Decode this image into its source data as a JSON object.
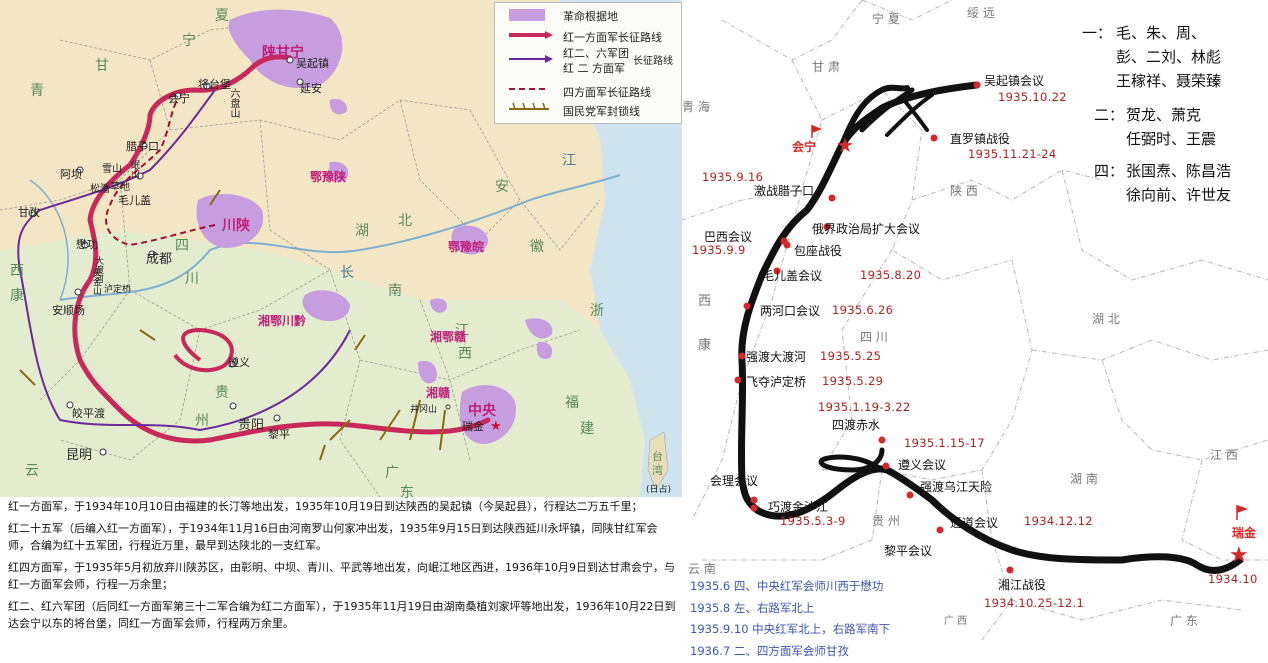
{
  "left_map": {
    "legend": {
      "base_area": "革命根据地",
      "red1_route": "红一方面军长征路线",
      "red26_line1": "红二、六军团",
      "red26_line2": "红 二 方面军",
      "red26_suffix": "长征路线",
      "red4_route": "四方面军长征路线",
      "blockade": "国民党军封锁线"
    },
    "provinces": [
      "宁",
      "夏",
      "甘",
      "青",
      "西",
      "康",
      "四",
      "川",
      "湖",
      "北",
      "南",
      "江",
      "西",
      "安",
      "徽",
      "浙",
      "贵",
      "州",
      "云",
      "广",
      "东",
      "福",
      "建",
      "台",
      "湾",
      "长",
      "江"
    ],
    "bases": [
      "陕甘宁",
      "鄂豫陕",
      "川陕",
      "鄂豫皖",
      "湘鄂川黔",
      "湘鄂赣",
      "湘赣",
      "中央"
    ],
    "places": [
      "吴起镇",
      "延安",
      "将台堡",
      "会宁",
      "六盘山",
      "腊子口",
      "阿坝",
      "松潘",
      "毛儿盖",
      "甘孜",
      "懋功",
      "大渡河",
      "安顺场",
      "泸定桥",
      "成都",
      "遵义",
      "贵阳",
      "黎平",
      "昆明",
      "皎平渡",
      "井冈山",
      "瑞金",
      "草地",
      "雪山",
      "夹金山",
      "岷山",
      "(日占)"
    ]
  },
  "notes": [
    "红一方面军，于1934年10月10日由福建的长汀等地出发，1935年10月19日到达陕西的吴起镇（今吴起县），行程达二万五千里；",
    "红二十五军（后编入红一方面军），于1934年11月16日由河南罗山何家冲出发，1935年9月15日到达陕西延川永坪镇，同陕甘红军会师，合编为红十五军团，行程近万里，最早到达陕北的一支红军。",
    "红四方面军，于1935年5月初放弃川陕苏区，由彰明、中坝、青川、平武等地出发，向岷江地区西进，1936年10月9日到达甘肃会宁，与红一方面军会师，行程一万余里；",
    "红二、红六军团（后同红一方面军第三十二军合编为红二方面军），于1935年11月19日由湖南桑植刘家坪等地出发，1936年10月22日到达会宁以东的将台堡，同红一方面军会师，行程两万余里。"
  ],
  "right_map": {
    "legend": [
      {
        "tag": "一：",
        "l1": "毛、朱、周、",
        "l2": "彭、二刘、林彪",
        "l3": "王稼祥、聂荣臻"
      },
      {
        "tag": "二：",
        "l1": "贺龙、萧克",
        "l2": "任弼时、王震"
      },
      {
        "tag": "四：",
        "l1": "张国焘、陈昌浩",
        "l2": "徐向前、许世友"
      }
    ],
    "provinces": [
      "宁 夏",
      "绥 远",
      "甘 肃",
      "青 海",
      "陕 西",
      "西",
      "康",
      "四 川",
      "湖 北",
      "湖 南",
      "江 西",
      "贵 州",
      "云 南",
      "广 东",
      "广 西"
    ],
    "events": [
      {
        "name": "吴起镇会议",
        "date": "1935.10.22"
      },
      {
        "name": "直罗镇战役",
        "date": "1935.11.21-24"
      },
      {
        "name": "会宁"
      },
      {
        "name": "激战腊子口",
        "date": "1935.9.16"
      },
      {
        "name": "俄界政治局扩大会议"
      },
      {
        "name": "巴西会议",
        "date": "1935.9.9"
      },
      {
        "name": "包座战役"
      },
      {
        "name": "毛儿盖会议",
        "date": "1935.8.20"
      },
      {
        "name": "两河口会议",
        "date": "1935.6.26"
      },
      {
        "name": "强渡大渡河",
        "date": "1935.5.25"
      },
      {
        "name": "飞夺泸定桥",
        "date": "1935.5.29"
      },
      {
        "name": "四渡赤水",
        "date": "1935.1.19-3.22"
      },
      {
        "name": "遵义会议",
        "date": "1935.1.15-17"
      },
      {
        "name": "强渡乌江天险"
      },
      {
        "name": "会理会议"
      },
      {
        "name": "巧渡金沙江",
        "date": "1935.5.3-9"
      },
      {
        "name": "通道会议",
        "date": "1934.12.12"
      },
      {
        "name": "黎平会议"
      },
      {
        "name": "湘江战役",
        "date": "1934.10.25-12.1"
      },
      {
        "name": "瑞金",
        "date": "1934.10"
      }
    ],
    "timeline_notes": [
      "1935.6 四、中央红军会师川西于懋功",
      "1935.8 左、右路军北上",
      "1935.9.10 中央红军北上，右路军南下",
      "1936.7 二、四方面军会师甘孜"
    ]
  }
}
